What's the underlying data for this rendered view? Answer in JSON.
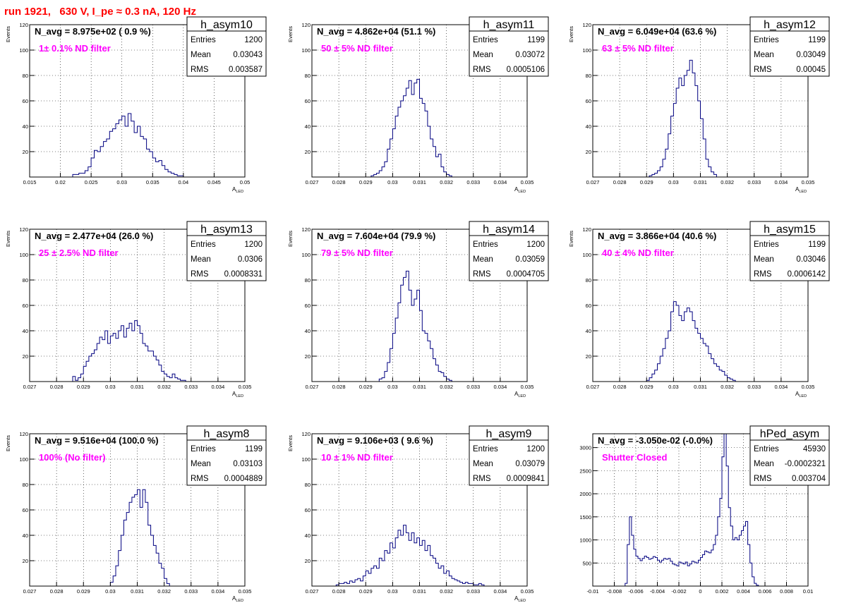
{
  "title": "run 1921,   630 V, I_pe ≈ 0.3 nA, 120 Hz",
  "colors": {
    "hist": "#000080",
    "label": "#ff00ff",
    "title": "#ff0000",
    "grid": "#000000"
  },
  "chart_data": [
    {
      "type": "bar",
      "name": "h_asym10",
      "navg": "N_avg = 8.975e+02 ( 0.9 %)",
      "filter": "1± 0.1% ND filter",
      "entries": "1200",
      "mean": "0.03043",
      "rms": "0.003587",
      "xlim": [
        0.015,
        0.05
      ],
      "ylim": [
        0,
        120
      ],
      "xticks": [
        0.015,
        0.02,
        0.025,
        0.03,
        0.035,
        0.04,
        0.045,
        0.05
      ],
      "xtick_labels": [
        "0.015",
        "0.02",
        "0.025",
        "0.03",
        "0.035",
        "0.04",
        "0.045",
        "0.05"
      ],
      "yticks": [
        20,
        40,
        60,
        80,
        100,
        120
      ],
      "ytick_labels": [
        "20",
        "40",
        "60",
        "80",
        "100",
        "120"
      ],
      "xlabel": "A",
      "xlabel_sub": "LED",
      "ylabel": "Events",
      "bins": [
        0.022,
        0.0225,
        0.023,
        0.0235,
        0.024,
        0.0245,
        0.025,
        0.0255,
        0.026,
        0.0265,
        0.027,
        0.0275,
        0.028,
        0.0285,
        0.029,
        0.0295,
        0.03,
        0.0305,
        0.031,
        0.0315,
        0.032,
        0.0325,
        0.033,
        0.0335,
        0.034,
        0.0345,
        0.035,
        0.0355,
        0.036,
        0.0365,
        0.037,
        0.0375,
        0.038,
        0.0385,
        0.039,
        0.0395
      ],
      "counts": [
        2,
        2,
        3,
        3,
        5,
        8,
        15,
        21,
        20,
        24,
        28,
        30,
        36,
        38,
        42,
        45,
        48,
        40,
        50,
        44,
        35,
        40,
        32,
        30,
        22,
        20,
        15,
        12,
        13,
        9,
        6,
        4,
        3,
        2,
        1,
        1
      ]
    },
    {
      "type": "bar",
      "name": "h_asym11",
      "navg": "N_avg = 4.862e+04 (51.1 %)",
      "filter": "50 ± 5% ND filter",
      "entries": "1199",
      "mean": "0.03072",
      "rms": "0.0005106",
      "xlim": [
        0.027,
        0.035
      ],
      "ylim": [
        0,
        120
      ],
      "xticks": [
        0.027,
        0.028,
        0.029,
        0.03,
        0.031,
        0.032,
        0.033,
        0.034,
        0.035
      ],
      "xtick_labels": [
        "0.027",
        "0.028",
        "0.029",
        "0.03",
        "0.031",
        "0.032",
        "0.033",
        "0.034",
        "0.035"
      ],
      "yticks": [
        20,
        40,
        60,
        80,
        100,
        120
      ],
      "ytick_labels": [
        "20",
        "40",
        "60",
        "80",
        "100",
        "120"
      ],
      "xlabel": "A",
      "xlabel_sub": "LED",
      "ylabel": "Events",
      "bins": [
        0.0292,
        0.0293,
        0.0294,
        0.0295,
        0.0296,
        0.0297,
        0.0298,
        0.0299,
        0.03,
        0.0301,
        0.0302,
        0.0303,
        0.0304,
        0.0305,
        0.0306,
        0.0307,
        0.0308,
        0.0309,
        0.031,
        0.0311,
        0.0312,
        0.0313,
        0.0314,
        0.0315,
        0.0316,
        0.0317,
        0.0318,
        0.0319,
        0.032,
        0.0321
      ],
      "counts": [
        1,
        2,
        3,
        5,
        8,
        12,
        22,
        30,
        38,
        48,
        55,
        60,
        64,
        70,
        76,
        65,
        74,
        77,
        62,
        58,
        52,
        40,
        30,
        24,
        16,
        18,
        8,
        4,
        2,
        1
      ]
    },
    {
      "type": "bar",
      "name": "h_asym12",
      "navg": "N_avg = 6.049e+04 (63.6 %)",
      "filter": "63 ± 5% ND filter",
      "entries": "1199",
      "mean": "0.03049",
      "rms": "0.00045",
      "xlim": [
        0.027,
        0.035
      ],
      "ylim": [
        0,
        120
      ],
      "xticks": [
        0.027,
        0.028,
        0.029,
        0.03,
        0.031,
        0.032,
        0.033,
        0.034,
        0.035
      ],
      "xtick_labels": [
        "0.027",
        "0.028",
        "0.029",
        "0.03",
        "0.031",
        "0.032",
        "0.033",
        "0.034",
        "0.035"
      ],
      "yticks": [
        20,
        40,
        60,
        80,
        100,
        120
      ],
      "ytick_labels": [
        "20",
        "40",
        "60",
        "80",
        "100",
        "120"
      ],
      "xlabel": "A",
      "xlabel_sub": "LED",
      "ylabel": "Events",
      "bins": [
        0.0291,
        0.0292,
        0.0293,
        0.0294,
        0.0295,
        0.0296,
        0.0297,
        0.0298,
        0.0299,
        0.03,
        0.0301,
        0.0302,
        0.0303,
        0.0304,
        0.0305,
        0.0306,
        0.0307,
        0.0308,
        0.0309,
        0.031,
        0.0311,
        0.0312,
        0.0313,
        0.0314,
        0.0315
      ],
      "counts": [
        1,
        2,
        3,
        5,
        8,
        14,
        22,
        34,
        48,
        58,
        70,
        78,
        72,
        80,
        84,
        92,
        82,
        72,
        60,
        46,
        30,
        14,
        8,
        4,
        2
      ]
    },
    {
      "type": "bar",
      "name": "h_asym13",
      "navg": "N_avg = 2.477e+04 (26.0 %)",
      "filter": "25 ± 2.5% ND filter",
      "entries": "1200",
      "mean": "0.0306",
      "rms": "0.0008331",
      "xlim": [
        0.027,
        0.035
      ],
      "ylim": [
        0,
        120
      ],
      "xticks": [
        0.027,
        0.028,
        0.029,
        0.03,
        0.031,
        0.032,
        0.033,
        0.034,
        0.035
      ],
      "xtick_labels": [
        "0.027",
        "0.028",
        "0.029",
        "0.03",
        "0.031",
        "0.032",
        "0.033",
        "0.034",
        "0.035"
      ],
      "yticks": [
        20,
        40,
        60,
        80,
        100,
        120
      ],
      "ytick_labels": [
        "20",
        "40",
        "60",
        "80",
        "100",
        "120"
      ],
      "xlabel": "A",
      "xlabel_sub": "LED",
      "ylabel": "Events",
      "bins": [
        0.0286,
        0.0287,
        0.0288,
        0.0289,
        0.029,
        0.0291,
        0.0292,
        0.0293,
        0.0294,
        0.0295,
        0.0296,
        0.0297,
        0.0298,
        0.0299,
        0.03,
        0.0301,
        0.0302,
        0.0303,
        0.0304,
        0.0305,
        0.0306,
        0.0307,
        0.0308,
        0.0309,
        0.031,
        0.0311,
        0.0312,
        0.0313,
        0.0314,
        0.0315,
        0.0316,
        0.0317,
        0.0318,
        0.0319,
        0.032,
        0.0321,
        0.0322,
        0.0323,
        0.0324,
        0.0325,
        0.0326,
        0.0327
      ],
      "counts": [
        4,
        1,
        3,
        6,
        12,
        16,
        20,
        22,
        25,
        30,
        35,
        33,
        40,
        30,
        36,
        38,
        34,
        40,
        44,
        35,
        42,
        46,
        40,
        48,
        44,
        38,
        30,
        28,
        24,
        24,
        20,
        17,
        13,
        8,
        6,
        4,
        3,
        6,
        3,
        2,
        1,
        1
      ]
    },
    {
      "type": "bar",
      "name": "h_asym14",
      "navg": "N_avg = 7.604e+04 (79.9 %)",
      "filter": "79 ± 5% ND filter",
      "entries": "1200",
      "mean": "0.03059",
      "rms": "0.0004705",
      "xlim": [
        0.027,
        0.035
      ],
      "ylim": [
        0,
        120
      ],
      "xticks": [
        0.027,
        0.028,
        0.029,
        0.03,
        0.031,
        0.032,
        0.033,
        0.034,
        0.035
      ],
      "xtick_labels": [
        "0.027",
        "0.028",
        "0.029",
        "0.03",
        "0.031",
        "0.032",
        "0.033",
        "0.034",
        "0.035"
      ],
      "yticks": [
        20,
        40,
        60,
        80,
        100,
        120
      ],
      "ytick_labels": [
        "20",
        "40",
        "60",
        "80",
        "100",
        "120"
      ],
      "xlabel": "A",
      "xlabel_sub": "LED",
      "ylabel": "Events",
      "bins": [
        0.0295,
        0.0296,
        0.0297,
        0.0298,
        0.0299,
        0.03,
        0.0301,
        0.0302,
        0.0303,
        0.0304,
        0.0305,
        0.0306,
        0.0307,
        0.0308,
        0.0309,
        0.031,
        0.0311,
        0.0312,
        0.0313,
        0.0314,
        0.0315,
        0.0316,
        0.0317,
        0.0318,
        0.0319,
        0.032,
        0.0321
      ],
      "counts": [
        2,
        3,
        8,
        15,
        26,
        38,
        50,
        62,
        76,
        82,
        87,
        72,
        60,
        65,
        72,
        56,
        40,
        38,
        32,
        26,
        18,
        13,
        8,
        7,
        4,
        2,
        1
      ]
    },
    {
      "type": "bar",
      "name": "h_asym15",
      "navg": "N_avg = 3.866e+04 (40.6 %)",
      "filter": "40 ± 4% ND filter",
      "entries": "1199",
      "mean": "0.03046",
      "rms": "0.0006142",
      "xlim": [
        0.027,
        0.035
      ],
      "ylim": [
        0,
        120
      ],
      "xticks": [
        0.027,
        0.028,
        0.029,
        0.03,
        0.031,
        0.032,
        0.033,
        0.034,
        0.035
      ],
      "xtick_labels": [
        "0.027",
        "0.028",
        "0.029",
        "0.03",
        "0.031",
        "0.032",
        "0.033",
        "0.034",
        "0.035"
      ],
      "yticks": [
        20,
        40,
        60,
        80,
        100,
        120
      ],
      "ytick_labels": [
        "20",
        "40",
        "60",
        "80",
        "100",
        "120"
      ],
      "xlabel": "A",
      "xlabel_sub": "LED",
      "ylabel": "Events",
      "bins": [
        0.029,
        0.0291,
        0.0292,
        0.0293,
        0.0294,
        0.0295,
        0.0296,
        0.0297,
        0.0298,
        0.0299,
        0.03,
        0.0301,
        0.0302,
        0.0303,
        0.0304,
        0.0305,
        0.0306,
        0.0307,
        0.0308,
        0.0309,
        0.031,
        0.0311,
        0.0312,
        0.0313,
        0.0314,
        0.0315,
        0.0316,
        0.0317,
        0.0318,
        0.0319,
        0.032,
        0.0321,
        0.0322
      ],
      "counts": [
        1,
        3,
        6,
        9,
        14,
        20,
        26,
        34,
        40,
        55,
        63,
        60,
        52,
        48,
        55,
        58,
        55,
        48,
        42,
        38,
        34,
        30,
        28,
        22,
        18,
        14,
        12,
        9,
        8,
        5,
        3,
        2,
        1
      ]
    },
    {
      "type": "bar",
      "name": "h_asym8",
      "navg": "N_avg = 9.516e+04 (100.0 %)",
      "filter": "100% (No filter)",
      "entries": "1199",
      "mean": "0.03103",
      "rms": "0.0004889",
      "xlim": [
        0.027,
        0.035
      ],
      "ylim": [
        0,
        120
      ],
      "xticks": [
        0.027,
        0.028,
        0.029,
        0.03,
        0.031,
        0.032,
        0.033,
        0.034,
        0.035
      ],
      "xtick_labels": [
        "0.027",
        "0.028",
        "0.029",
        "0.03",
        "0.031",
        "0.032",
        "0.033",
        "0.034",
        "0.035"
      ],
      "yticks": [
        20,
        40,
        60,
        80,
        100,
        120
      ],
      "ytick_labels": [
        "20",
        "40",
        "60",
        "80",
        "100",
        "120"
      ],
      "xlabel": "A",
      "xlabel_sub": "LED",
      "ylabel": "Events",
      "bins": [
        0.03,
        0.0301,
        0.0302,
        0.0303,
        0.0304,
        0.0305,
        0.0306,
        0.0307,
        0.0308,
        0.0309,
        0.031,
        0.0311,
        0.0312,
        0.0313,
        0.0314,
        0.0315,
        0.0316,
        0.0317,
        0.0318,
        0.0319,
        0.032,
        0.0321
      ],
      "counts": [
        3,
        8,
        16,
        28,
        40,
        52,
        58,
        66,
        70,
        72,
        76,
        62,
        76,
        66,
        48,
        40,
        32,
        26,
        18,
        14,
        6,
        2
      ]
    },
    {
      "type": "bar",
      "name": "h_asym9",
      "navg": "N_avg = 9.106e+03 ( 9.6 %)",
      "filter": "10 ± 1% ND filter",
      "entries": "1200",
      "mean": "0.03079",
      "rms": "0.0009841",
      "xlim": [
        0.027,
        0.035
      ],
      "ylim": [
        0,
        120
      ],
      "xticks": [
        0.027,
        0.028,
        0.029,
        0.03,
        0.031,
        0.032,
        0.033,
        0.034,
        0.035
      ],
      "xtick_labels": [
        "0.027",
        "0.028",
        "0.029",
        "0.03",
        "0.031",
        "0.032",
        "0.033",
        "0.034",
        "0.035"
      ],
      "yticks": [
        20,
        40,
        60,
        80,
        100,
        120
      ],
      "ytick_labels": [
        "20",
        "40",
        "60",
        "80",
        "100",
        "120"
      ],
      "xlabel": "A",
      "xlabel_sub": "LED",
      "ylabel": "Events",
      "bins": [
        0.0279,
        0.028,
        0.0281,
        0.0282,
        0.0283,
        0.0284,
        0.0285,
        0.0286,
        0.0287,
        0.0288,
        0.0289,
        0.029,
        0.0291,
        0.0292,
        0.0293,
        0.0294,
        0.0295,
        0.0296,
        0.0297,
        0.0298,
        0.0299,
        0.03,
        0.0301,
        0.0302,
        0.0303,
        0.0304,
        0.0305,
        0.0306,
        0.0307,
        0.0308,
        0.0309,
        0.031,
        0.0311,
        0.0312,
        0.0313,
        0.0314,
        0.0315,
        0.0316,
        0.0317,
        0.0318,
        0.0319,
        0.032,
        0.0321,
        0.0322,
        0.0323,
        0.0324,
        0.0325,
        0.0326,
        0.0327,
        0.0328,
        0.0329,
        0.033,
        0.0331,
        0.0332,
        0.0333
      ],
      "counts": [
        1,
        2,
        2,
        3,
        2,
        4,
        3,
        5,
        6,
        4,
        8,
        12,
        10,
        14,
        16,
        14,
        22,
        20,
        28,
        26,
        34,
        30,
        38,
        44,
        40,
        48,
        42,
        36,
        42,
        34,
        38,
        32,
        36,
        28,
        32,
        24,
        22,
        18,
        14,
        16,
        10,
        12,
        8,
        6,
        5,
        4,
        3,
        2,
        3,
        2,
        2,
        1,
        1,
        2,
        1
      ]
    },
    {
      "type": "bar",
      "name": "hPed_asym",
      "navg": "N_avg = -3.050e-02 (-0.0%)",
      "filter": "Shutter Closed",
      "entries": "45930",
      "mean": "-0.0002321",
      "rms": "0.003704",
      "xlim": [
        -0.01,
        0.01
      ],
      "ylim": [
        0,
        3300
      ],
      "xticks": [
        -0.01,
        -0.008,
        -0.006,
        -0.004,
        -0.002,
        0,
        0.002,
        0.004,
        0.006,
        0.008,
        0.01
      ],
      "xtick_labels": [
        "-0.01",
        "-0.008",
        "-0.006",
        "-0.004",
        "-0.002",
        "0",
        "0.002",
        "0.004",
        "0.006",
        "0.008",
        "0.01"
      ],
      "yticks": [
        500,
        1000,
        1500,
        2000,
        2500,
        3000
      ],
      "ytick_labels": [
        "500",
        "1000",
        "1500",
        "2000",
        "2500",
        "3000"
      ],
      "xlabel": "",
      "xlabel_sub": "",
      "ylabel": "",
      "bins": [
        -0.007,
        -0.0068,
        -0.0066,
        -0.0064,
        -0.0062,
        -0.006,
        -0.0058,
        -0.0056,
        -0.0054,
        -0.0052,
        -0.005,
        -0.0048,
        -0.0046,
        -0.0044,
        -0.0042,
        -0.004,
        -0.0038,
        -0.0036,
        -0.0034,
        -0.0032,
        -0.003,
        -0.0028,
        -0.0026,
        -0.0024,
        -0.0022,
        -0.002,
        -0.0018,
        -0.0016,
        -0.0014,
        -0.0012,
        -0.001,
        -0.0008,
        -0.0006,
        -0.0004,
        -0.0002,
        0.0,
        0.0002,
        0.0004,
        0.0006,
        0.0008,
        0.001,
        0.0012,
        0.0014,
        0.0016,
        0.0018,
        0.002,
        0.0022,
        0.0024,
        0.0026,
        0.0028,
        0.003,
        0.0032,
        0.0034,
        0.0036,
        0.0038,
        0.004,
        0.0042,
        0.0044,
        0.0046,
        0.0048,
        0.005,
        0.0052
      ],
      "counts": [
        60,
        900,
        1500,
        1100,
        800,
        650,
        600,
        550,
        600,
        650,
        620,
        580,
        600,
        640,
        620,
        560,
        520,
        560,
        600,
        580,
        600,
        540,
        480,
        460,
        440,
        520,
        500,
        480,
        520,
        440,
        480,
        540,
        520,
        500,
        560,
        620,
        680,
        760,
        740,
        720,
        780,
        900,
        1100,
        1500,
        1900,
        2800,
        3300,
        2600,
        1700,
        1300,
        1000,
        1050,
        1000,
        1100,
        1200,
        1300,
        1400,
        900,
        500,
        200,
        60,
        20
      ]
    }
  ]
}
